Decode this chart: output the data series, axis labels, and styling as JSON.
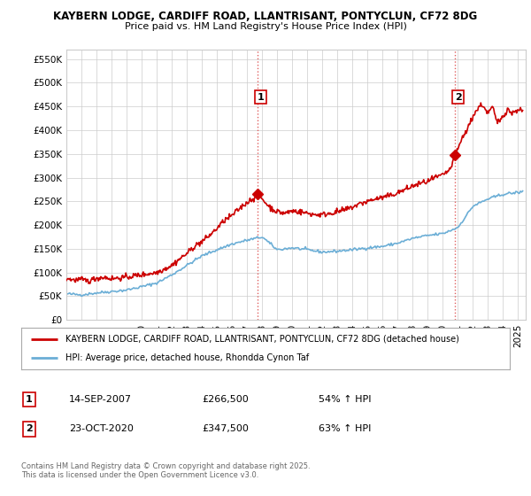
{
  "title_line1": "KAYBERN LODGE, CARDIFF ROAD, LLANTRISANT, PONTYCLUN, CF72 8DG",
  "title_line2": "Price paid vs. HM Land Registry's House Price Index (HPI)",
  "ylim": [
    0,
    570000
  ],
  "yticks": [
    0,
    50000,
    100000,
    150000,
    200000,
    250000,
    300000,
    350000,
    400000,
    450000,
    500000,
    550000
  ],
  "ytick_labels": [
    "£0",
    "£50K",
    "£100K",
    "£150K",
    "£200K",
    "£250K",
    "£300K",
    "£350K",
    "£400K",
    "£450K",
    "£500K",
    "£550K"
  ],
  "xlim_start": 1995.0,
  "xlim_end": 2025.5,
  "xticks": [
    1995,
    1996,
    1997,
    1998,
    1999,
    2000,
    2001,
    2002,
    2003,
    2004,
    2005,
    2006,
    2007,
    2008,
    2009,
    2010,
    2011,
    2012,
    2013,
    2014,
    2015,
    2016,
    2017,
    2018,
    2019,
    2020,
    2021,
    2022,
    2023,
    2024,
    2025
  ],
  "sale1_x": 2007.71,
  "sale1_y": 266500,
  "sale1_label": "1",
  "sale2_x": 2020.81,
  "sale2_y": 347500,
  "sale2_label": "2",
  "marker_color": "#cc0000",
  "hpi_color": "#6baed6",
  "price_color": "#cc0000",
  "background_color": "#ffffff",
  "grid_color": "#cccccc",
  "legend_line1": "KAYBERN LODGE, CARDIFF ROAD, LLANTRISANT, PONTYCLUN, CF72 8DG (detached house)",
  "legend_line2": "HPI: Average price, detached house, Rhondda Cynon Taf",
  "table_row1_num": "1",
  "table_row1_date": "14-SEP-2007",
  "table_row1_price": "£266,500",
  "table_row1_hpi": "54% ↑ HPI",
  "table_row2_num": "2",
  "table_row2_date": "23-OCT-2020",
  "table_row2_price": "£347,500",
  "table_row2_hpi": "63% ↑ HPI",
  "footer": "Contains HM Land Registry data © Crown copyright and database right 2025.\nThis data is licensed under the Open Government Licence v3.0.",
  "vline_color": "#e06060",
  "vline_style": ":",
  "sale1_vline_x": 2007.71,
  "sale2_vline_x": 2020.81
}
